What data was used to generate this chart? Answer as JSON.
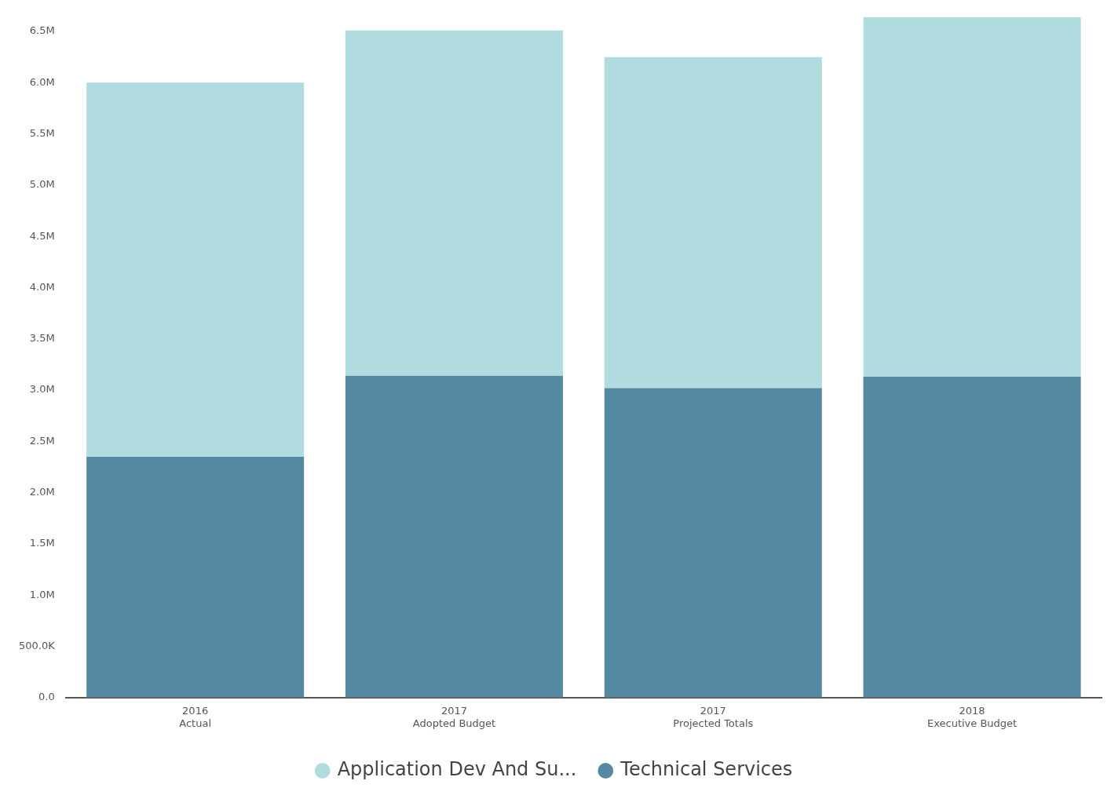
{
  "chart_data": {
    "type": "bar",
    "stacked": true,
    "categories": [
      "2016 Actual",
      "2017 Adopted Budget",
      "2017 Projected Totals",
      "2018 Executive Budget"
    ],
    "series": [
      {
        "name": "Technical Services",
        "color": "#5589a1",
        "values": [
          2350000,
          3140000,
          3020000,
          3130000
        ]
      },
      {
        "name": "Application Dev And Su...",
        "color": "#b0dce0",
        "values": [
          3650000,
          3370000,
          3230000,
          3510000
        ]
      }
    ],
    "ylim": [
      0,
      6640000
    ],
    "yticks": [
      {
        "value": 0,
        "label": "0.0"
      },
      {
        "value": 500000,
        "label": "500.0K"
      },
      {
        "value": 1000000,
        "label": "1.0M"
      },
      {
        "value": 1500000,
        "label": "1.5M"
      },
      {
        "value": 2000000,
        "label": "2.0M"
      },
      {
        "value": 2500000,
        "label": "2.5M"
      },
      {
        "value": 3000000,
        "label": "3.0M"
      },
      {
        "value": 3500000,
        "label": "3.5M"
      },
      {
        "value": 4000000,
        "label": "4.0M"
      },
      {
        "value": 4500000,
        "label": "4.5M"
      },
      {
        "value": 5000000,
        "label": "5.0M"
      },
      {
        "value": 5500000,
        "label": "5.5M"
      },
      {
        "value": 6000000,
        "label": "6.0M"
      },
      {
        "value": 6500000,
        "label": "6.5M"
      }
    ],
    "grid": false,
    "legend": "bottom"
  }
}
